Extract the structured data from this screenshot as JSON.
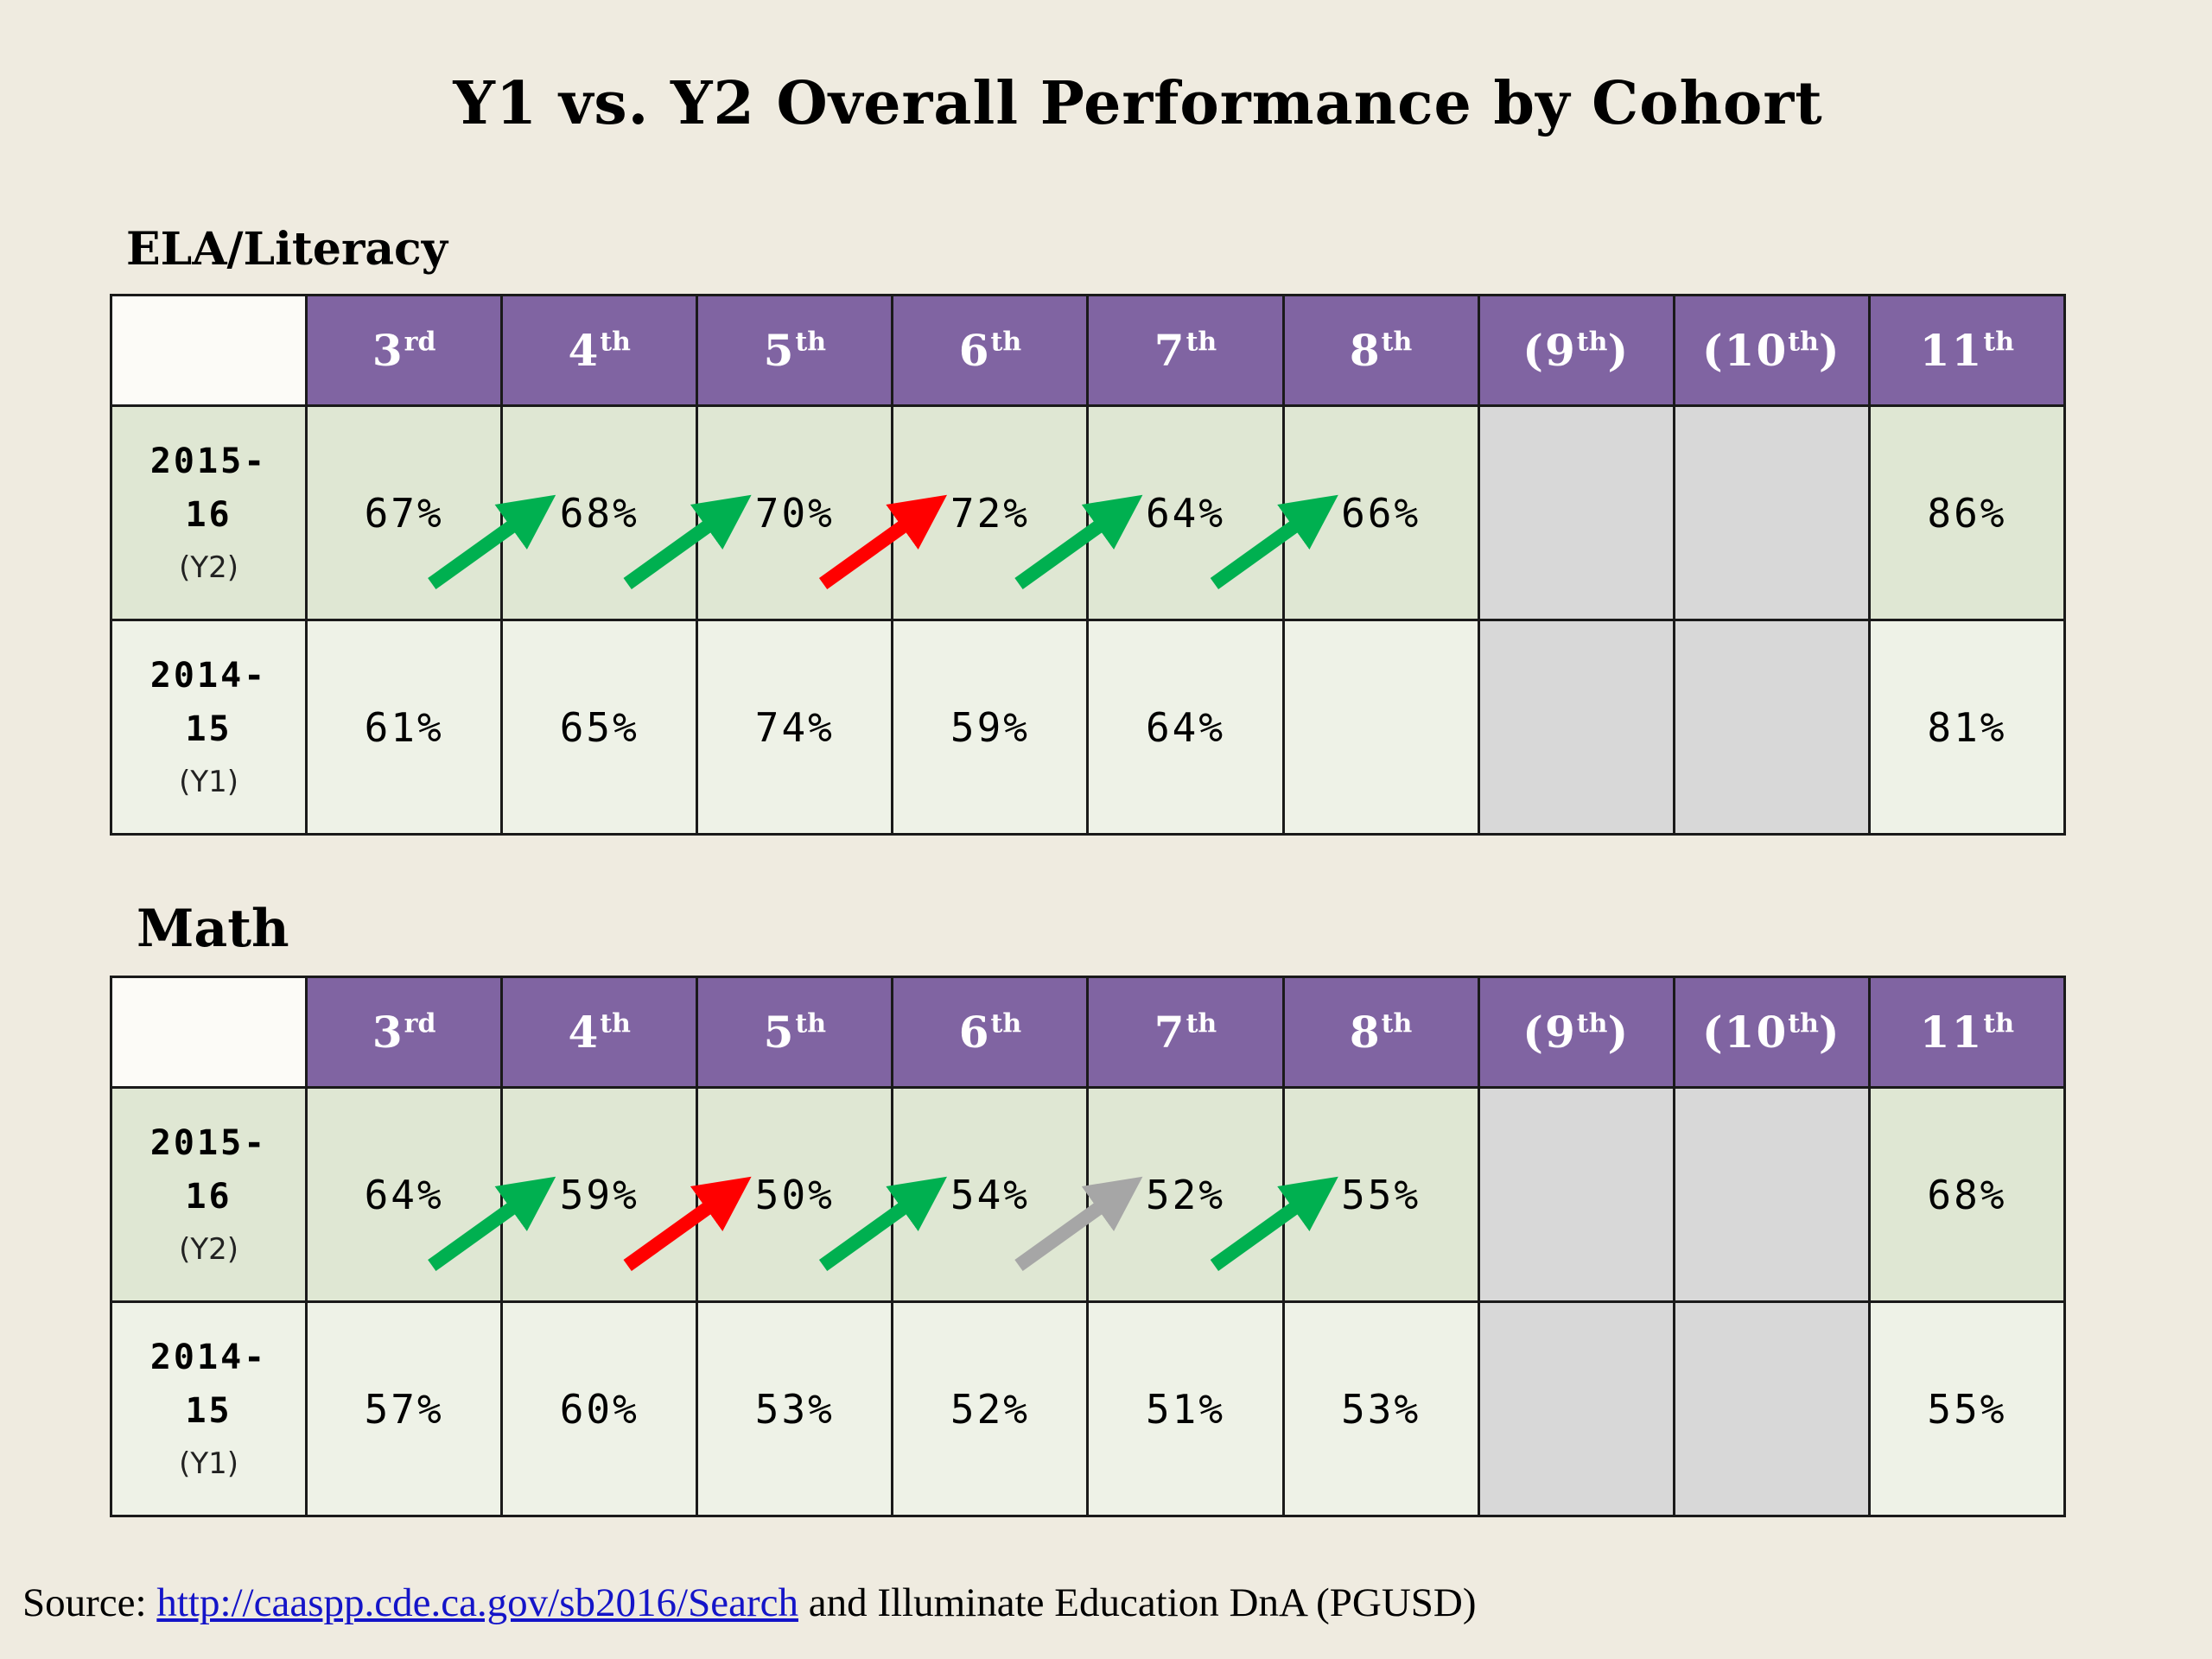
{
  "title": "Y1 vs. Y2 Overall Performance by Cohort",
  "colors": {
    "header_bg": "#8064a2",
    "y2_row_bg": "#dfe7d3",
    "y1_row_bg": "#eef2e7",
    "blank_cell": "#d8d8d8",
    "arrow_up": "#00b050",
    "arrow_down": "#ff0000",
    "arrow_flat": "#a6a6a6"
  },
  "grades": [
    {
      "pre": "",
      "num": "3",
      "sup": "rd",
      "post": ""
    },
    {
      "pre": "",
      "num": "4",
      "sup": "th",
      "post": ""
    },
    {
      "pre": "",
      "num": "5",
      "sup": "th",
      "post": ""
    },
    {
      "pre": "",
      "num": "6",
      "sup": "th",
      "post": ""
    },
    {
      "pre": "",
      "num": "7",
      "sup": "th",
      "post": ""
    },
    {
      "pre": "",
      "num": "8",
      "sup": "th",
      "post": ""
    },
    {
      "pre": "(",
      "num": "9",
      "sup": "th",
      "post": ")"
    },
    {
      "pre": "(",
      "num": "10",
      "sup": "th",
      "post": ")"
    },
    {
      "pre": "",
      "num": "11",
      "sup": "th",
      "post": ""
    }
  ],
  "row_labels": {
    "y2": {
      "year_a": "2015-",
      "year_b": "16",
      "tag": "(Y2)"
    },
    "y1": {
      "year_a": "2014-",
      "year_b": "15",
      "tag": "(Y1)"
    }
  },
  "ela": {
    "label": "ELA/Literacy",
    "y2": [
      "67%",
      "68%",
      "70%",
      "72%",
      "64%",
      "66%",
      "",
      "",
      "86%"
    ],
    "y1": [
      "61%",
      "65%",
      "74%",
      "59%",
      "64%",
      "",
      "",
      "",
      "81%"
    ],
    "arrows": [
      "up",
      "up",
      "down",
      "up",
      "up"
    ]
  },
  "math": {
    "label": "Math",
    "y2": [
      "64%",
      "59%",
      "50%",
      "54%",
      "52%",
      "55%",
      "",
      "",
      "68%"
    ],
    "y1": [
      "57%",
      "60%",
      "53%",
      "52%",
      "51%",
      "53%",
      "",
      "",
      "55%"
    ],
    "arrows": [
      "up",
      "down",
      "up",
      "flat",
      "up"
    ]
  },
  "source": {
    "prefix": "Source: ",
    "link_text": "http://caaspp.cde.ca.gov/sb2016/Search",
    "suffix": " and Illuminate Education DnA (PGUSD)"
  }
}
